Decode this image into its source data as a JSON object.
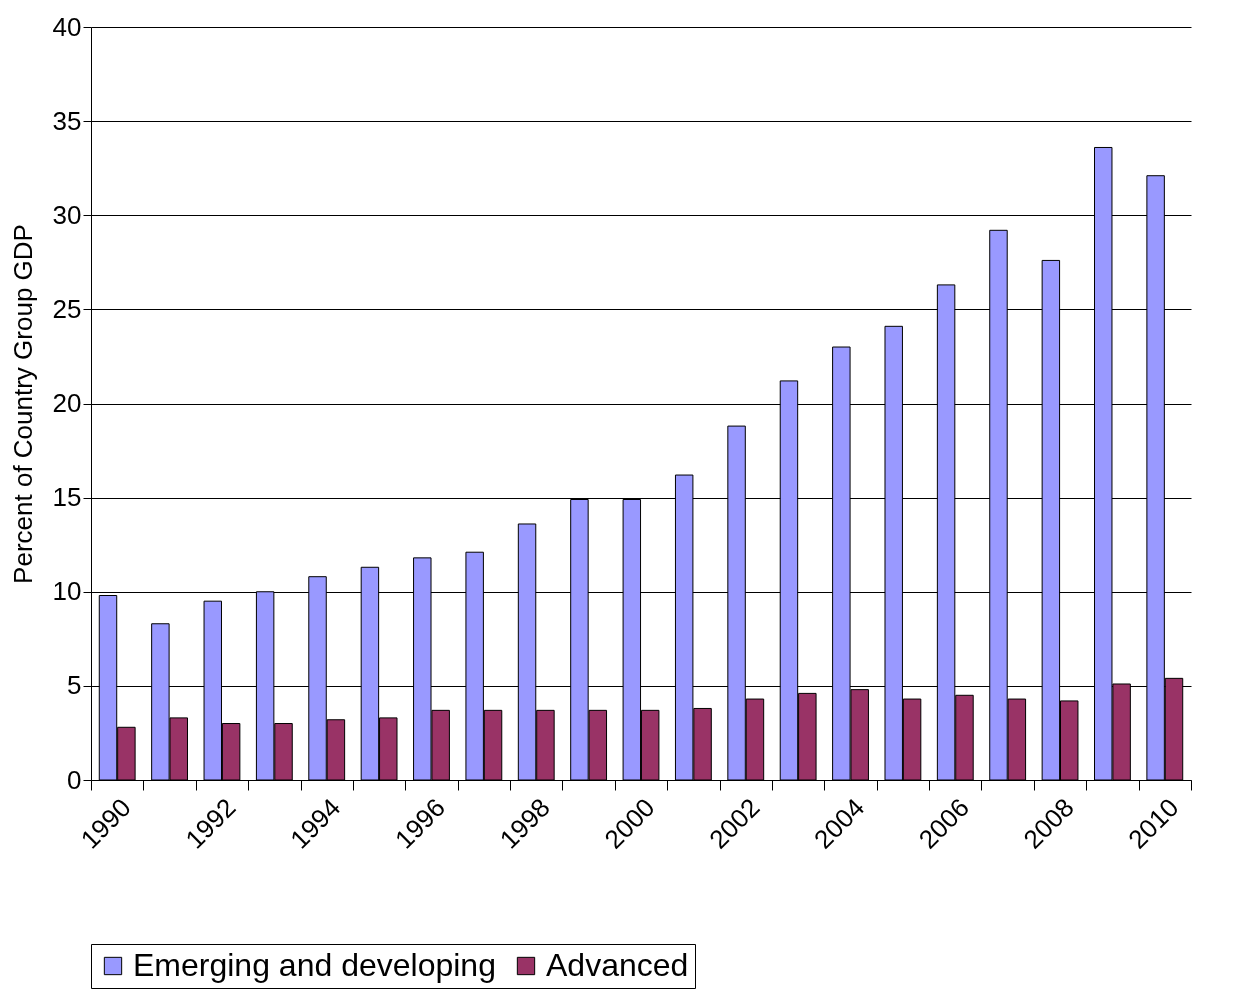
{
  "chart_data": {
    "type": "bar",
    "ylabel": "Percent of Country Group GDP",
    "categories": [
      "1990",
      null,
      "1992",
      null,
      "1994",
      null,
      "1996",
      null,
      "1998",
      null,
      "2000",
      null,
      "2002",
      null,
      "2004",
      null,
      "2006",
      null,
      "2008",
      null,
      "2010"
    ],
    "series": [
      {
        "name": "Emerging and developing",
        "color": "#9999ff",
        "values": [
          9.8,
          8.3,
          9.5,
          10,
          10.8,
          11.3,
          11.8,
          12.1,
          13.6,
          14.9,
          14.9,
          16.2,
          18.8,
          21.2,
          23,
          24.1,
          26.3,
          29.2,
          27.6,
          33.6,
          32.1
        ]
      },
      {
        "name": "Advanced",
        "color": "#993366",
        "values": [
          2.8,
          3.3,
          3,
          3,
          3.2,
          3.3,
          3.7,
          3.7,
          3.7,
          3.7,
          3.7,
          3.8,
          4.3,
          4.6,
          4.8,
          4.3,
          4.5,
          4.3,
          4.2,
          5.1,
          5.4
        ]
      }
    ],
    "ylim": [
      0,
      40
    ],
    "yticks": [
      0,
      5,
      10,
      15,
      20,
      25,
      30,
      35,
      40
    ],
    "grid": "y",
    "legend": "bottom"
  }
}
